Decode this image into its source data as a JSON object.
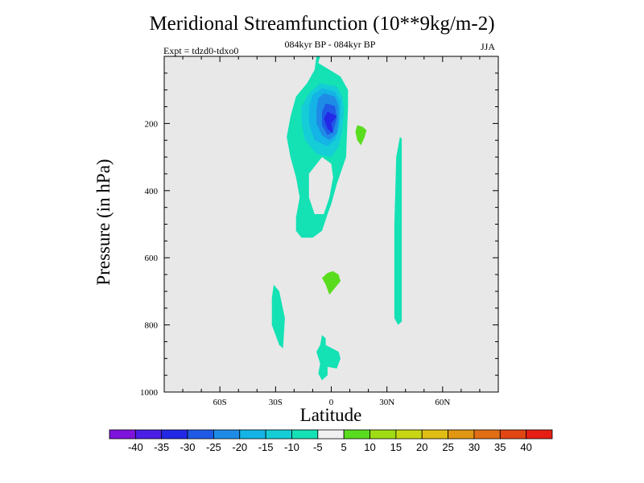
{
  "chart_data": {
    "type": "contour",
    "title": "Meridional Streamfunction (10**9kg/m-2)",
    "subtitle": "084kyr BP - 084kyr BP",
    "experiment": "Expt = tdzd0-tdxo0",
    "season": "JJA",
    "xlabel": "Latitude",
    "ylabel": "Pressure (in hPa)",
    "xlim": [
      -90,
      90
    ],
    "ylim": [
      1000,
      0
    ],
    "x_ticks": [
      {
        "value": -60,
        "label": "60S"
      },
      {
        "value": -30,
        "label": "30S"
      },
      {
        "value": 0,
        "label": "0"
      },
      {
        "value": 30,
        "label": "30N"
      },
      {
        "value": 60,
        "label": "60N"
      }
    ],
    "y_ticks": [
      {
        "value": 200,
        "label": "200"
      },
      {
        "value": 400,
        "label": "400"
      },
      {
        "value": 600,
        "label": "600"
      },
      {
        "value": 800,
        "label": "800"
      },
      {
        "value": 1000,
        "label": "1000"
      }
    ],
    "colorbar": {
      "labels": [
        "-40",
        "-35",
        "-30",
        "-25",
        "-20",
        "-15",
        "-10",
        "-5",
        "5",
        "10",
        "15",
        "20",
        "25",
        "30",
        "35",
        "40"
      ],
      "colors": [
        "#7f14dc",
        "#4a1ee6",
        "#2328e6",
        "#1e5ae6",
        "#1e8ce6",
        "#14b4e6",
        "#14cdd7",
        "#14e1b4",
        "#f0f0f0",
        "#5adc1e",
        "#a0dc14",
        "#c8d714",
        "#e1be14",
        "#e19614",
        "#e16e14",
        "#e14614",
        "#e61e14"
      ]
    },
    "regions": [
      {
        "name": "ne5-main",
        "fill": "#14e1b4",
        "points": [
          [
            -8,
            0
          ],
          [
            -6,
            0
          ],
          [
            -7,
            20
          ],
          [
            5,
            60
          ],
          [
            9,
            100
          ],
          [
            9,
            150
          ],
          [
            8,
            300
          ],
          [
            3,
            380
          ],
          [
            0,
            440
          ],
          [
            -2,
            470
          ],
          [
            -5,
            520
          ],
          [
            -10,
            540
          ],
          [
            -16,
            540
          ],
          [
            -19,
            520
          ],
          [
            -19,
            480
          ],
          [
            -17,
            420
          ],
          [
            -19,
            360
          ],
          [
            -22,
            300
          ],
          [
            -24,
            240
          ],
          [
            -22,
            180
          ],
          [
            -19,
            120
          ],
          [
            -13,
            80
          ],
          [
            -9,
            40
          ]
        ]
      },
      {
        "name": "neg10",
        "fill": "#14cdd7",
        "points": [
          [
            -6,
            80
          ],
          [
            3,
            90
          ],
          [
            6,
            120
          ],
          [
            7,
            160
          ],
          [
            6,
            220
          ],
          [
            4,
            270
          ],
          [
            0,
            300
          ],
          [
            -8,
            290
          ],
          [
            -14,
            250
          ],
          [
            -16,
            200
          ],
          [
            -16,
            150
          ],
          [
            -12,
            110
          ]
        ]
      },
      {
        "name": "neg15",
        "fill": "#14b4e6",
        "points": [
          [
            -5,
            95
          ],
          [
            2,
            105
          ],
          [
            5,
            135
          ],
          [
            5,
            180
          ],
          [
            4,
            220
          ],
          [
            2,
            250
          ],
          [
            -2,
            268
          ],
          [
            -9,
            250
          ],
          [
            -12,
            200
          ],
          [
            -12,
            150
          ],
          [
            -10,
            115
          ]
        ]
      },
      {
        "name": "neg20",
        "fill": "#1e8ce6",
        "points": [
          [
            -4,
            110
          ],
          [
            2,
            120
          ],
          [
            4,
            150
          ],
          [
            4,
            190
          ],
          [
            3,
            230
          ],
          [
            -1,
            250
          ],
          [
            -5,
            235
          ],
          [
            -8,
            200
          ],
          [
            -8,
            155
          ],
          [
            -7,
            125
          ]
        ]
      },
      {
        "name": "neg25",
        "fill": "#1e5ae6",
        "points": [
          [
            -3,
            140
          ],
          [
            2,
            148
          ],
          [
            3,
            185
          ],
          [
            1,
            225
          ],
          [
            -2,
            235
          ],
          [
            -5,
            205
          ],
          [
            -5,
            165
          ]
        ]
      },
      {
        "name": "neg30",
        "fill": "#2328e6",
        "points": [
          [
            -2,
            165
          ],
          [
            3,
            178
          ],
          [
            0,
            200
          ],
          [
            1,
            230
          ],
          [
            -2,
            215
          ],
          [
            -4,
            185
          ]
        ]
      },
      {
        "name": "gap-hole",
        "fill": "#e8e8e8",
        "points": [
          [
            -12,
            350
          ],
          [
            -5,
            300
          ],
          [
            0,
            320
          ],
          [
            1,
            360
          ],
          [
            -1,
            420
          ],
          [
            -4,
            470
          ],
          [
            -9,
            470
          ],
          [
            -12,
            420
          ]
        ]
      },
      {
        "name": "right-stripe",
        "fill": "#14e1b4",
        "points": [
          [
            37,
            240
          ],
          [
            38,
            245
          ],
          [
            38,
            320
          ],
          [
            38,
            500
          ],
          [
            38,
            790
          ],
          [
            36,
            800
          ],
          [
            34,
            780
          ],
          [
            34,
            500
          ],
          [
            35,
            300
          ]
        ]
      },
      {
        "name": "left-blob",
        "fill": "#14e1b4",
        "points": [
          [
            -31,
            680
          ],
          [
            -28,
            700
          ],
          [
            -25,
            780
          ],
          [
            -26,
            870
          ],
          [
            -28,
            860
          ],
          [
            -32,
            800
          ],
          [
            -32,
            720
          ]
        ]
      },
      {
        "name": "bottom-blob",
        "fill": "#14e1b4",
        "points": [
          [
            -5,
            830
          ],
          [
            -3,
            840
          ],
          [
            -3,
            860
          ],
          [
            4,
            880
          ],
          [
            5,
            900
          ],
          [
            3,
            930
          ],
          [
            -2,
            925
          ],
          [
            -2,
            950
          ],
          [
            -5,
            965
          ],
          [
            -7,
            945
          ],
          [
            -6,
            915
          ],
          [
            -8,
            880
          ],
          [
            -6,
            860
          ]
        ]
      },
      {
        "name": "pos5-upper",
        "fill": "#5adc1e",
        "points": [
          [
            14,
            205
          ],
          [
            17,
            210
          ],
          [
            19,
            220
          ],
          [
            18,
            240
          ],
          [
            16,
            265
          ],
          [
            14,
            250
          ],
          [
            13,
            225
          ]
        ]
      },
      {
        "name": "pos5-lower",
        "fill": "#5adc1e",
        "points": [
          [
            1,
            640
          ],
          [
            4,
            650
          ],
          [
            5,
            670
          ],
          [
            2,
            690
          ],
          [
            -1,
            710
          ],
          [
            -3,
            680
          ],
          [
            -5,
            660
          ],
          [
            -2,
            645
          ]
        ]
      }
    ]
  }
}
